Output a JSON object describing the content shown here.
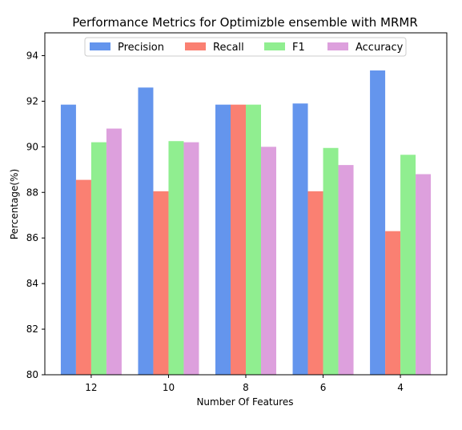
{
  "chart_data": {
    "type": "bar",
    "title": "Performance Metrics for Optimizble ensemble with MRMR",
    "xlabel": "Number Of Features",
    "ylabel": "Percentage(%)",
    "categories": [
      "12",
      "10",
      "8",
      "6",
      "4"
    ],
    "ylim": [
      80,
      95
    ],
    "yticks": [
      80,
      82,
      84,
      86,
      88,
      90,
      92,
      94
    ],
    "grid": false,
    "legend_position": "top-center",
    "series": [
      {
        "name": "Precision",
        "color": "#6495ED",
        "values": [
          91.85,
          92.6,
          91.85,
          91.9,
          93.35
        ]
      },
      {
        "name": "Recall",
        "color": "#FA8072",
        "values": [
          88.55,
          88.05,
          91.85,
          88.05,
          86.3
        ]
      },
      {
        "name": "F1",
        "color": "#90EE90",
        "values": [
          90.2,
          90.25,
          91.85,
          89.95,
          89.65
        ]
      },
      {
        "name": "Accuracy",
        "color": "#DDA0DD",
        "values": [
          90.8,
          90.2,
          90.0,
          89.2,
          88.8
        ]
      }
    ]
  }
}
